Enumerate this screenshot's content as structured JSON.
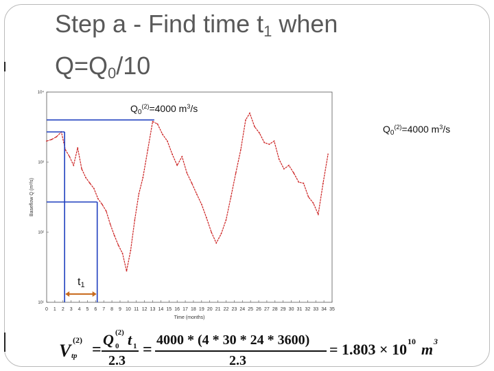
{
  "slide": {
    "title_line1_prefix": "Step a - Find time t",
    "title_line1_sub": "1",
    "title_line1_suffix": " when",
    "title_line2_prefix": "Q=Q",
    "title_line2_sub": "0",
    "title_line2_suffix": "/10"
  },
  "annotations": {
    "q0_label_1": {
      "q": "Q",
      "sub": "0",
      "sup": "(2)",
      "text": "=4000 m",
      "unit_sup": "3",
      "unit_tail": "/s"
    },
    "q0_label_2": {
      "q": "Q",
      "sub": "0",
      "sup": "(2)",
      "text": "=4000 m",
      "unit_sup": "3",
      "unit_tail": "/s"
    },
    "t1": {
      "t": "t",
      "sub": "1"
    }
  },
  "formula": {
    "lhs_v": "V",
    "lhs_sup": "(2)",
    "lhs_sub": "tp",
    "eq1": "=",
    "num1": "Q",
    "num1_sup": "(2)",
    "num1_sub": "0",
    "num1_t": "t",
    "num1_t_sub": "1",
    "den1": "2.3",
    "eq2": "=",
    "num2": "4000 * (4 * 30 * 24 * 3600)",
    "den2": "2.3",
    "eq3": "= 1.803 × 10",
    "exp": "10",
    "unit": "m",
    "unit_exp": "3"
  },
  "chart_data": {
    "type": "line",
    "title": "",
    "xlabel": "Time (months)",
    "ylabel": "Baseflow Q (m³/s)",
    "x_ticks": [
      "0",
      "1",
      "2",
      "3",
      "4",
      "5",
      "6",
      "7",
      "8",
      "9",
      "10",
      "11",
      "12",
      "13",
      "14",
      "15",
      "16",
      "17",
      "18",
      "19",
      "20",
      "21",
      "22",
      "23",
      "24",
      "25",
      "26",
      "27",
      "28",
      "29",
      "30",
      "31",
      "32",
      "33",
      "34",
      "35"
    ],
    "y_ticks": [
      "10¹",
      "10²",
      "10³",
      "10⁴"
    ],
    "y_scale": "log",
    "ylim": [
      10,
      10000
    ],
    "xlim": [
      0,
      35
    ],
    "series": [
      {
        "values_x": [
          0,
          0.6,
          1.2,
          1.8,
          2.3,
          2.8,
          3.3,
          3.8,
          4.3,
          4.8,
          5.3,
          5.8,
          6.3,
          6.8,
          7.3,
          7.8,
          8.3,
          8.8,
          9.3,
          9.8,
          10.3,
          10.8,
          11.3,
          11.8,
          12.4,
          13,
          13.6,
          14.2,
          14.8,
          15.4,
          16,
          16.6,
          17.2,
          17.8,
          18.4,
          19,
          19.6,
          20.2,
          20.8,
          21.4,
          22,
          22.6,
          23.2,
          23.8,
          24.4,
          24.9,
          25.5,
          26.1,
          26.7,
          27.3,
          27.9,
          28.5,
          29.1,
          29.7,
          30.3,
          30.9,
          31.5,
          32.1,
          32.7,
          33.3,
          33.9,
          34.5
        ],
        "values_y": [
          2000,
          2100,
          2300,
          2700,
          1500,
          1200,
          900,
          1600,
          800,
          600,
          500,
          420,
          300,
          250,
          200,
          130,
          90,
          65,
          50,
          28,
          55,
          150,
          350,
          600,
          1500,
          3800,
          3500,
          2500,
          2000,
          1300,
          900,
          1200,
          700,
          500,
          350,
          250,
          160,
          100,
          70,
          95,
          150,
          320,
          700,
          1500,
          4000,
          5000,
          3200,
          2600,
          1900,
          1800,
          2000,
          1100,
          800,
          900,
          700,
          520,
          500,
          320,
          260,
          180,
          500,
          1300
        ],
        "color": "#cc2222"
      }
    ],
    "markers": {
      "q0_level_top": 4000,
      "q0_level_start": 2700,
      "q0_div10": 270,
      "t0_month": 2.2,
      "t1_month": 6.2
    }
  }
}
